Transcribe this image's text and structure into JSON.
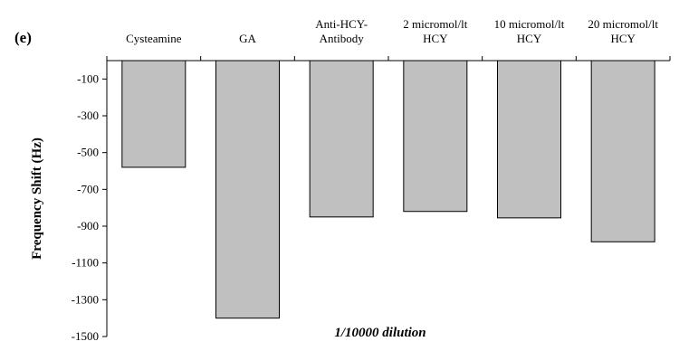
{
  "panel_label": "(e)",
  "annotation": "1/10000 dilution",
  "colors": {
    "bar_fill": "#c0c0c0",
    "bar_stroke": "#000000",
    "axis": "#000000",
    "background": "#ffffff"
  },
  "chart_data": {
    "type": "bar",
    "title": "",
    "xlabel": "",
    "ylabel": "Frequency Shift (Hz)",
    "categories": [
      [
        "Cysteamine"
      ],
      [
        "GA"
      ],
      [
        "Anti-HCY-",
        "Antibody"
      ],
      [
        "2 micromol/lt",
        "HCY"
      ],
      [
        "10 micromol/lt",
        "HCY"
      ],
      [
        "20 micromol/lt",
        "HCY"
      ]
    ],
    "values": [
      -580,
      -1400,
      -850,
      -820,
      -855,
      -985
    ],
    "ylim": [
      -1500,
      0
    ],
    "yticks": [
      -100,
      -300,
      -500,
      -700,
      -900,
      -1100,
      -1300,
      -1500
    ],
    "grid": false,
    "legend": "none"
  }
}
